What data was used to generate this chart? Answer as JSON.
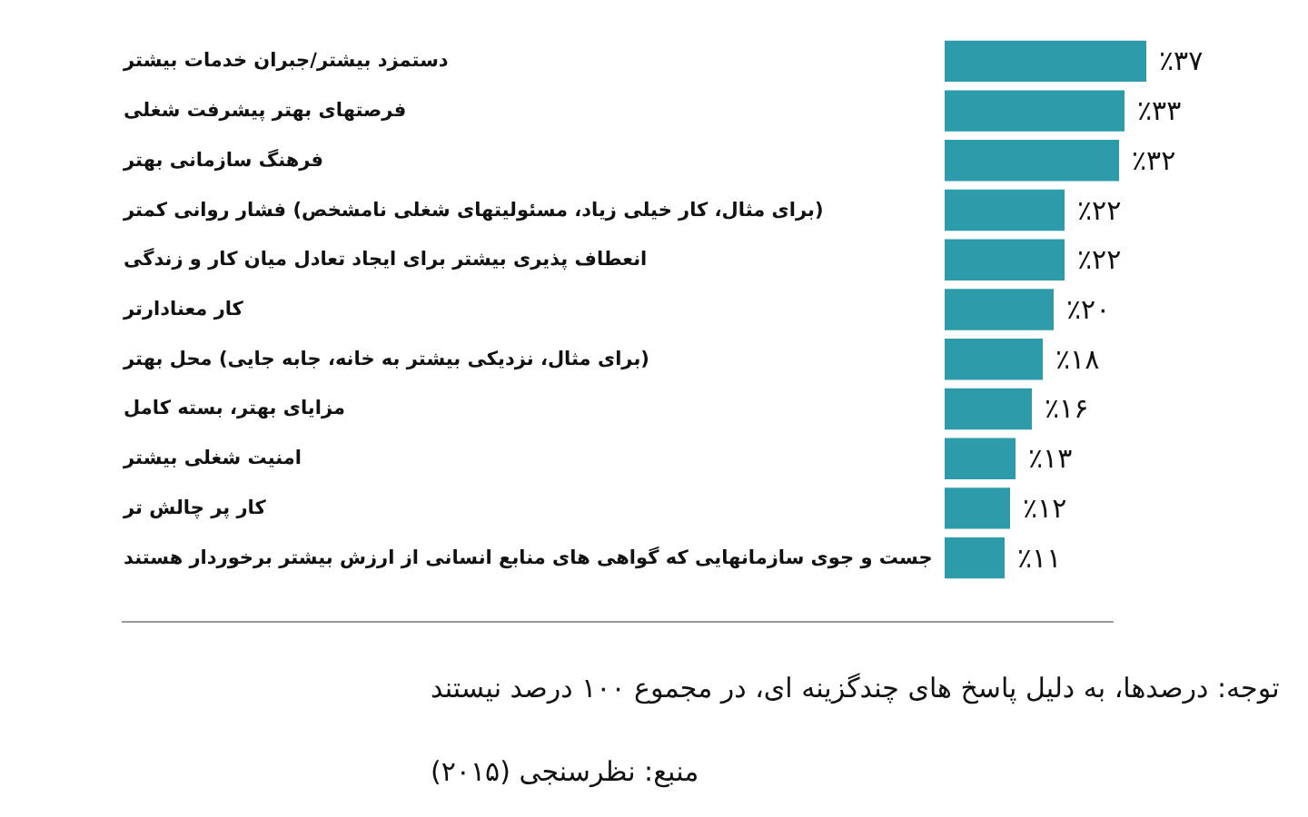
{
  "chart_data": {
    "type": "bar",
    "orientation": "horizontal",
    "categories": [
      "دستمزد بیشتر/جبران خدمات بیشتر",
      "فرصتهای بهتر پیشرفت شغلی",
      "فرهنگ سازمانی بهتر",
      "(برای مثال، کار خیلی زیاد، مسئولیتهای شغلی نامشخص) فشار روانی کمتر",
      "انعطاف پذیری بیشتر برای ایجاد تعادل میان کار و زندگی",
      "کار معنادارتر",
      "(برای مثال، نزدیکی بیشتر به خانه، جابه جایی) محل بهتر",
      "مزایای بهتر، بسته کامل",
      "امنیت شغلی بیشتر",
      "کار پر چالش تر",
      "جست و جوی سازمانهایی که گواهی های منابع انسانی از ارزش بیشتر برخوردار هستند"
    ],
    "values": [
      37,
      33,
      32,
      22,
      22,
      20,
      18,
      16,
      13,
      12,
      11
    ],
    "value_labels": [
      "٪۳۷",
      "٪۳۳",
      "٪۳۲",
      "٪۲۲",
      "٪۲۲",
      "٪۲۰",
      "٪۱۸",
      "٪۱۶",
      "٪۱۳",
      "٪۱۲",
      "٪۱۱"
    ],
    "color": "#2e9bab",
    "annotations": [
      "توجه: درصدها، به دلیل پاسخ های چندگزینه ای، در مجموع ۱۰۰ درصد نیستند",
      "منبع: نظرسنجی (۲۰۱۵)"
    ]
  }
}
